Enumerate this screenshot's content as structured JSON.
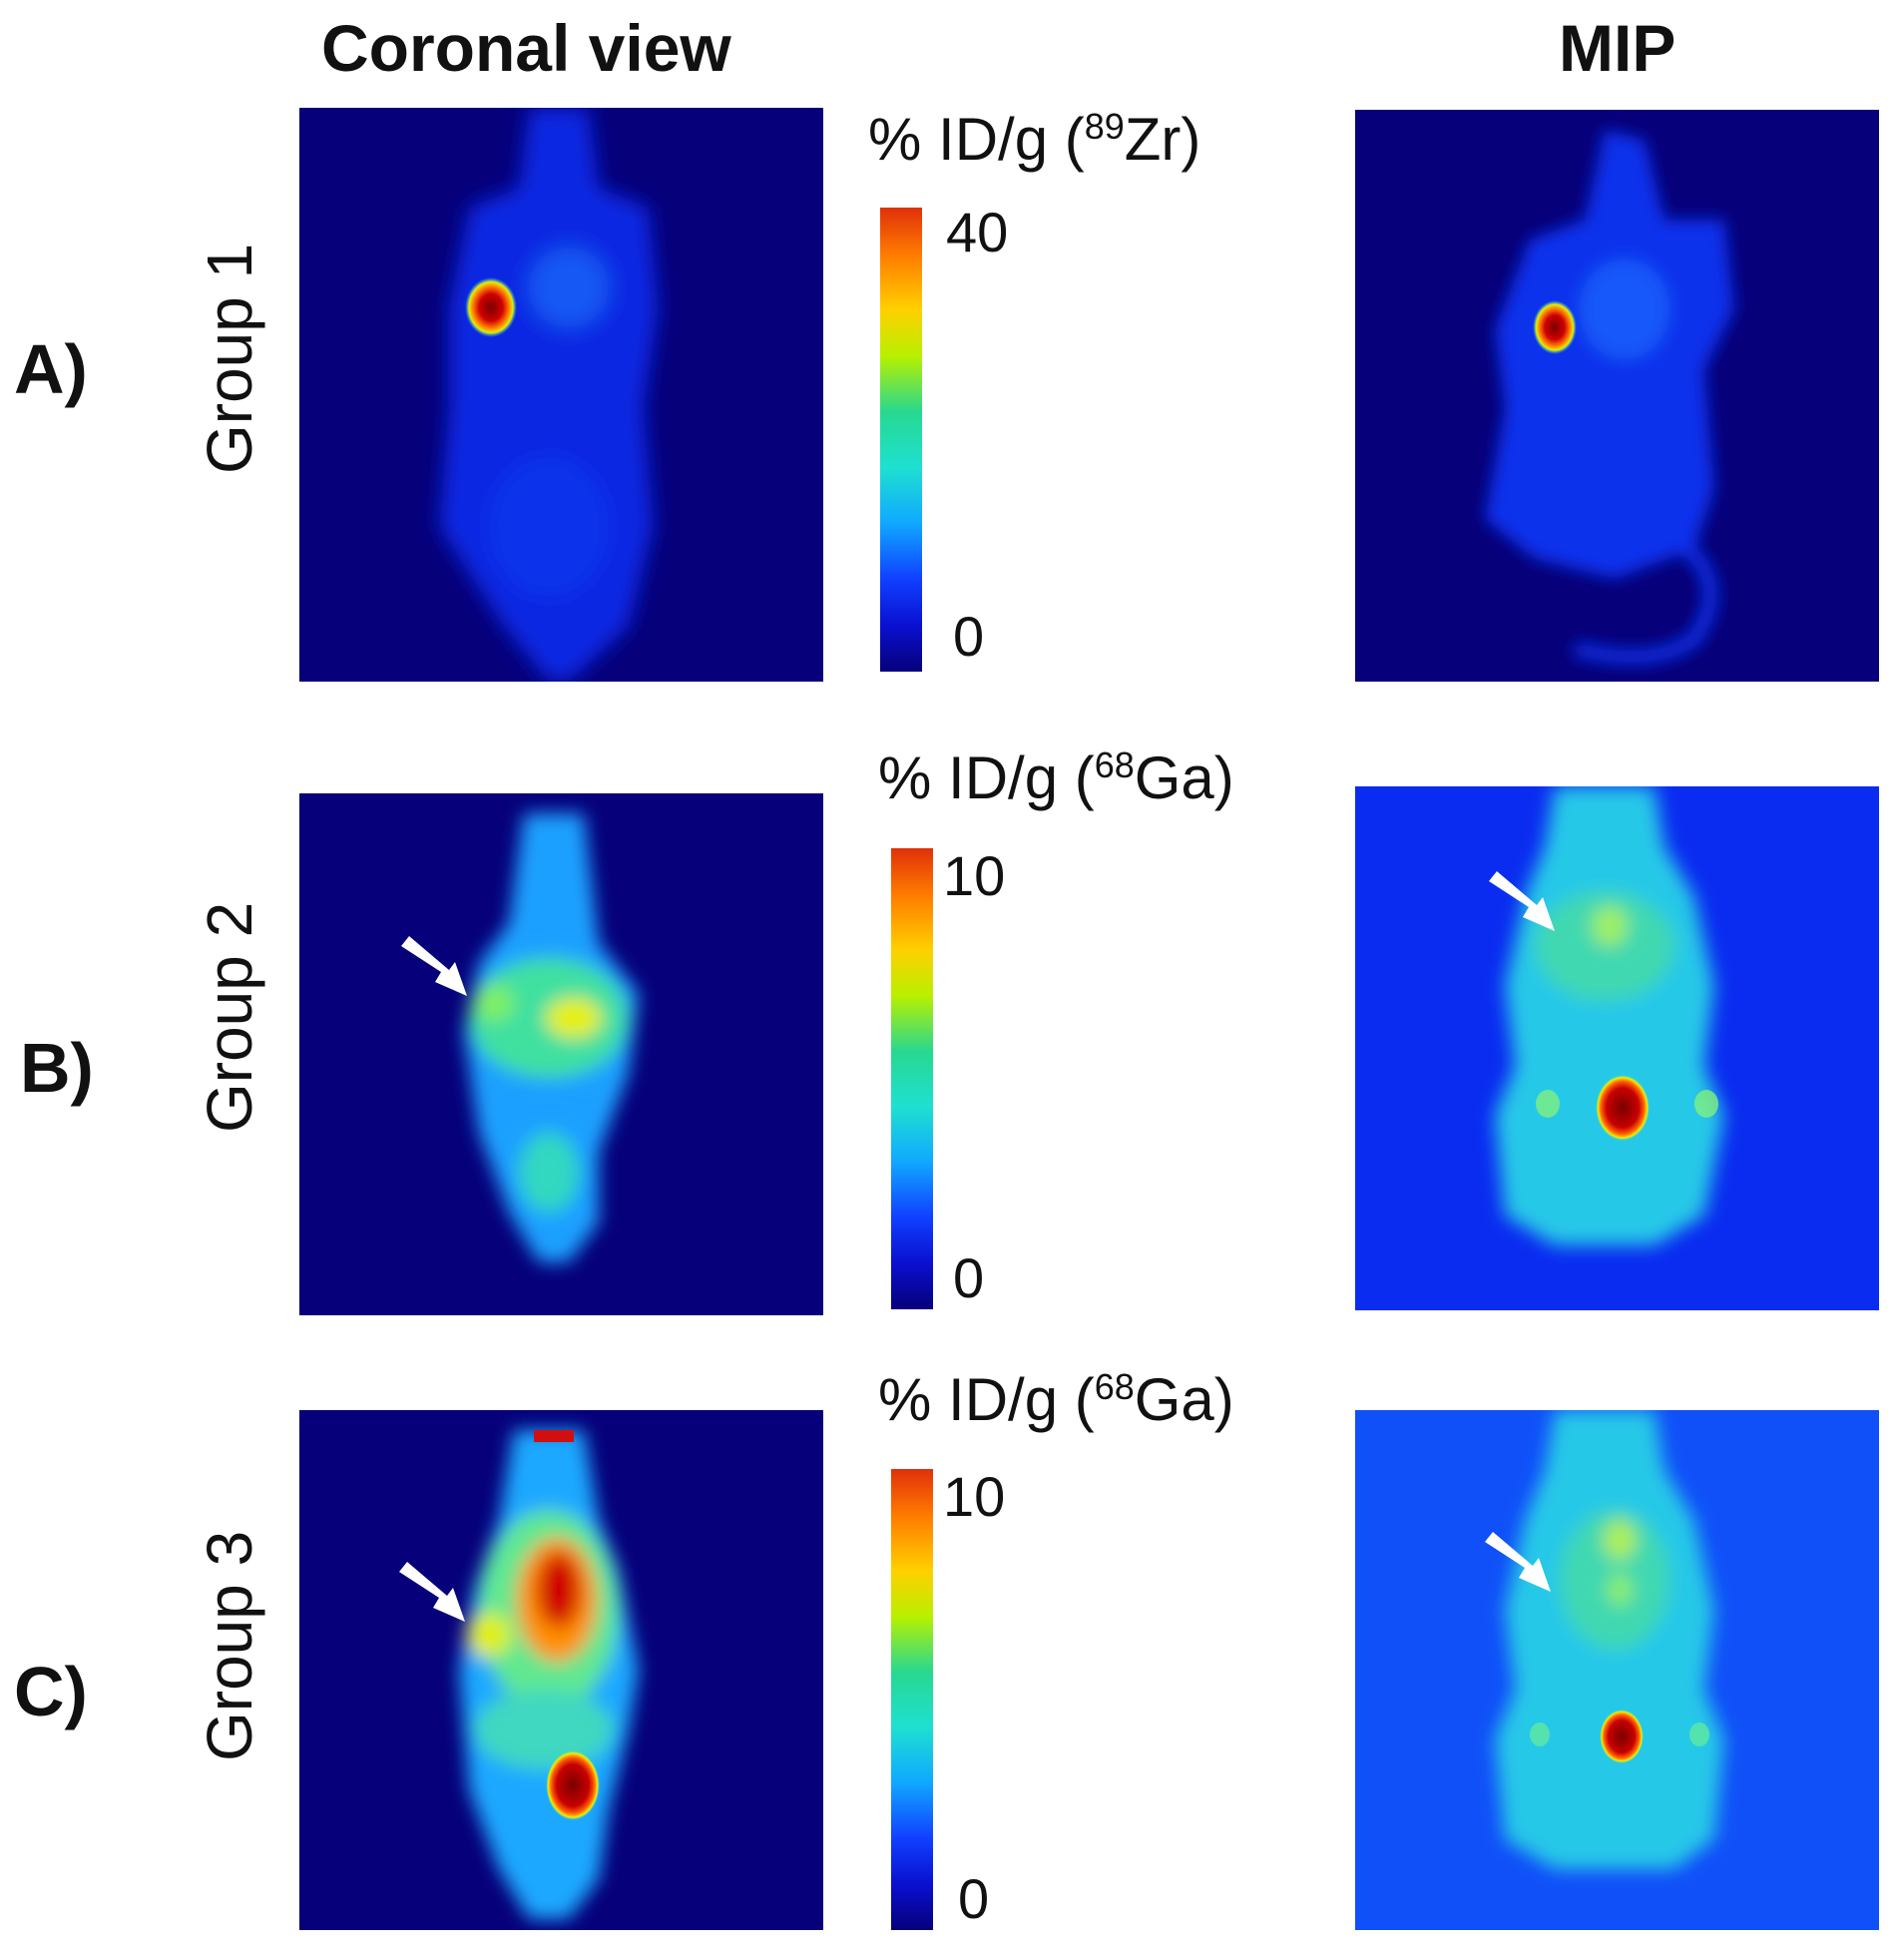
{
  "headers": {
    "coronal": "Coronal view",
    "mip": "MIP"
  },
  "rows": [
    {
      "letter": "A)",
      "group": "Group 1",
      "scale_prefix": "% ID/g (",
      "isotope_mass": "89",
      "isotope_symbol": "Zr)",
      "tick_max": "40",
      "tick_min": "0"
    },
    {
      "letter": "B)",
      "group": "Group 2",
      "scale_prefix": "% ID/g (",
      "isotope_mass": "68",
      "isotope_symbol": "Ga)",
      "tick_max": "10",
      "tick_min": "0"
    },
    {
      "letter": "C)",
      "group": "Group 3",
      "scale_prefix": "% ID/g (",
      "isotope_mass": "68",
      "isotope_symbol": "Ga)",
      "tick_max": "10",
      "tick_min": "0"
    }
  ],
  "colors": {
    "background_dark": "#06007a",
    "background_mip_b": "#0a2cf0",
    "background_mip_c": "#1050f8",
    "hot": "#c80000",
    "mid": "#20d0c0"
  }
}
